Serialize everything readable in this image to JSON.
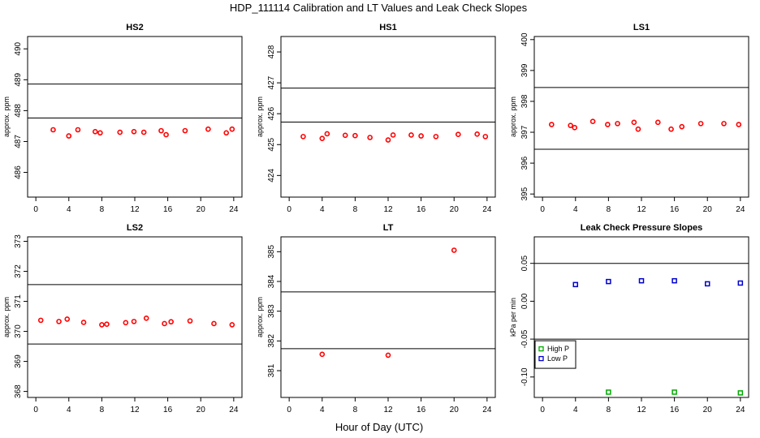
{
  "figure": {
    "title": "HDP_111114  Calibration and LT Values and Leak Check Slopes",
    "xlabel": "Hour of Day (UTC)"
  },
  "chart_data": [
    {
      "type": "scatter",
      "title": "HS2",
      "ylabel": "approx. ppm",
      "xlim": [
        -1,
        25
      ],
      "ylim": [
        485.2,
        490.4
      ],
      "x_ticks": [
        "0",
        "4",
        "8",
        "12",
        "16",
        "20",
        "24"
      ],
      "y_ticks": [
        "486",
        "487",
        "488",
        "489",
        "490"
      ],
      "ref_lines": [
        487.76,
        488.86
      ],
      "series": [
        {
          "color": "#ff0000",
          "marker": "circle",
          "x": [
            2.1,
            4.0,
            5.1,
            7.2,
            7.8,
            10.2,
            11.9,
            13.1,
            15.2,
            15.8,
            18.1,
            20.9,
            23.1,
            23.8
          ],
          "y": [
            487.38,
            487.18,
            487.38,
            487.32,
            487.28,
            487.3,
            487.32,
            487.3,
            487.35,
            487.22,
            487.35,
            487.4,
            487.28,
            487.4
          ]
        }
      ]
    },
    {
      "type": "scatter",
      "title": "HS1",
      "ylabel": "approx. ppm",
      "xlim": [
        -1,
        25
      ],
      "ylim": [
        423.3,
        428.5
      ],
      "x_ticks": [
        "0",
        "4",
        "8",
        "12",
        "16",
        "20",
        "24"
      ],
      "y_ticks": [
        "424",
        "425",
        "426",
        "427",
        "428"
      ],
      "ref_lines": [
        425.73,
        426.83
      ],
      "series": [
        {
          "color": "#ff0000",
          "marker": "circle",
          "x": [
            1.7,
            4.0,
            4.6,
            6.8,
            8.0,
            9.8,
            12.0,
            12.6,
            14.8,
            16.0,
            17.8,
            20.5,
            22.8,
            23.8
          ],
          "y": [
            425.26,
            425.2,
            425.35,
            425.3,
            425.29,
            425.23,
            425.15,
            425.31,
            425.31,
            425.28,
            425.26,
            425.33,
            425.34,
            425.26
          ]
        }
      ]
    },
    {
      "type": "scatter",
      "title": "LS1",
      "ylabel": "approx. ppm",
      "xlim": [
        -1,
        25
      ],
      "ylim": [
        394.9,
        400.1
      ],
      "x_ticks": [
        "0",
        "4",
        "8",
        "12",
        "16",
        "20",
        "24"
      ],
      "y_ticks": [
        "395",
        "396",
        "397",
        "398",
        "399",
        "400"
      ],
      "ref_lines": [
        396.45,
        398.45
      ],
      "series": [
        {
          "color": "#ff0000",
          "marker": "circle",
          "x": [
            1.1,
            3.4,
            3.9,
            6.1,
            7.9,
            9.1,
            11.1,
            11.6,
            14.0,
            15.6,
            16.9,
            19.2,
            22.0,
            23.8
          ],
          "y": [
            397.25,
            397.22,
            397.15,
            397.35,
            397.25,
            397.28,
            397.32,
            397.1,
            397.32,
            397.1,
            397.18,
            397.28,
            397.28,
            397.25
          ]
        }
      ]
    },
    {
      "type": "scatter",
      "title": "LS2",
      "ylabel": "approx. ppm",
      "xlim": [
        -1,
        25
      ],
      "ylim": [
        367.8,
        373.15
      ],
      "x_ticks": [
        "0",
        "4",
        "8",
        "12",
        "16",
        "20",
        "24"
      ],
      "y_ticks": [
        "368",
        "369",
        "370",
        "371",
        "372",
        "373"
      ],
      "ref_lines": [
        369.58,
        371.56
      ],
      "series": [
        {
          "color": "#ff0000",
          "marker": "circle",
          "x": [
            0.6,
            2.8,
            3.8,
            5.8,
            8.0,
            8.6,
            10.9,
            11.9,
            13.4,
            15.6,
            16.4,
            18.7,
            21.6,
            23.8
          ],
          "y": [
            370.37,
            370.33,
            370.41,
            370.3,
            370.22,
            370.24,
            370.29,
            370.33,
            370.44,
            370.26,
            370.32,
            370.35,
            370.26,
            370.22
          ]
        }
      ]
    },
    {
      "type": "scatter",
      "title": "LT",
      "ylabel": "approx. ppm",
      "xlim": [
        -1,
        25
      ],
      "ylim": [
        380.1,
        385.5
      ],
      "x_ticks": [
        "0",
        "4",
        "8",
        "12",
        "16",
        "20",
        "24"
      ],
      "y_ticks": [
        "381",
        "382",
        "383",
        "384",
        "385"
      ],
      "ref_lines": [
        381.74,
        383.65
      ],
      "series": [
        {
          "color": "#ff0000",
          "marker": "circle",
          "x": [
            4.0,
            12.0,
            20.0
          ],
          "y": [
            381.55,
            381.52,
            385.05
          ]
        }
      ]
    },
    {
      "type": "scatter",
      "title": "Leak Check Pressure Slopes",
      "ylabel": "kPa per min",
      "xlim": [
        -1,
        25
      ],
      "ylim": [
        -0.127,
        0.085
      ],
      "x_ticks": [
        "0",
        "4",
        "8",
        "12",
        "16",
        "20",
        "24"
      ],
      "y_ticks": [
        "-0.10",
        "-0.05",
        "0.00",
        "0.05"
      ],
      "ref_lines": [
        -0.05,
        0.05
      ],
      "legend": "left",
      "series": [
        {
          "name": "High P",
          "color": "#00aa00",
          "marker": "square",
          "x": [
            8.0,
            16.0,
            24.0
          ],
          "y": [
            -0.12,
            -0.12,
            -0.121
          ]
        },
        {
          "name": "Low P",
          "color": "#0000cc",
          "marker": "square",
          "x": [
            4.0,
            8.0,
            12.0,
            16.0,
            20.0,
            24.0
          ],
          "y": [
            0.022,
            0.026,
            0.027,
            0.027,
            0.023,
            0.024
          ]
        }
      ]
    }
  ]
}
